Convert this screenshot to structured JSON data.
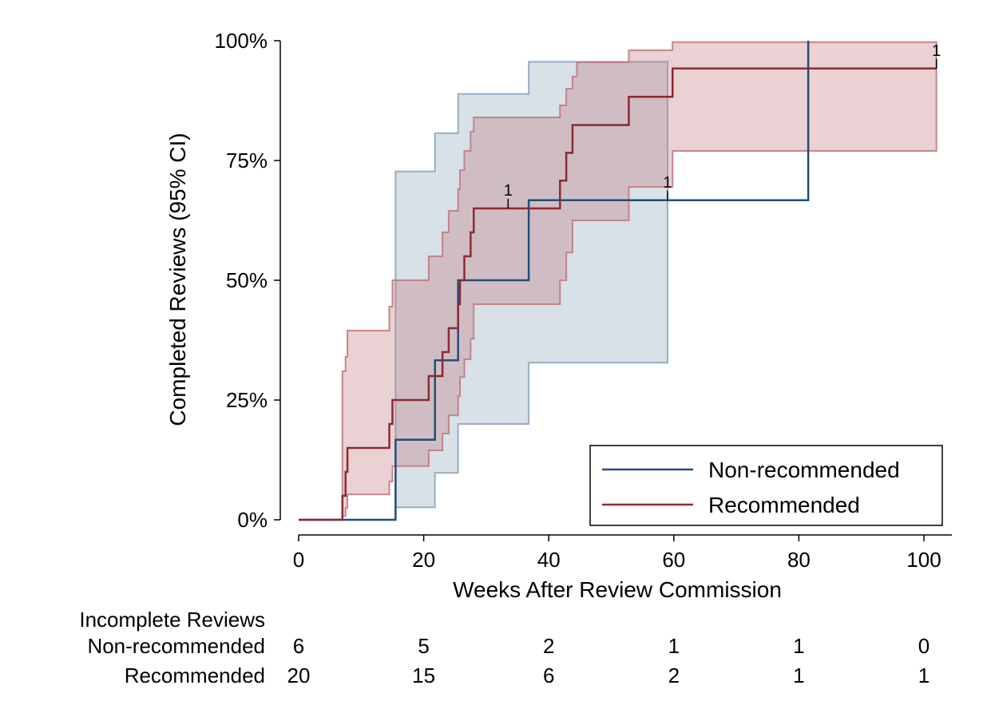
{
  "chart_data": {
    "type": "line",
    "xlabel": "Weeks After Review Commission",
    "ylabel": "Completed Reviews (95% CI)",
    "xlim": [
      0,
      102
    ],
    "ylim": [
      0,
      100
    ],
    "x_ticks": [
      "0",
      "20",
      "40",
      "60",
      "80",
      "100"
    ],
    "x_tick_values": [
      0,
      20,
      40,
      60,
      80,
      100
    ],
    "y_ticks": [
      "0%",
      "25%",
      "50%",
      "75%",
      "100%"
    ],
    "y_tick_values": [
      0,
      25,
      50,
      75,
      100
    ],
    "legend_position": "bottom-right",
    "colors": {
      "non_recommended": "#1f4e79",
      "recommended": "#8b2a35",
      "non_recommended_ci": "#8fa5bd",
      "recommended_ci": "#c27a80"
    },
    "series": [
      {
        "name": "Non-recommended",
        "step": [
          [
            0,
            0
          ],
          [
            15.5,
            0
          ],
          [
            15.5,
            16.7
          ],
          [
            21.8,
            16.7
          ],
          [
            21.8,
            33.3
          ],
          [
            25.5,
            33.3
          ],
          [
            25.5,
            50
          ],
          [
            36.8,
            50
          ],
          [
            36.8,
            66.7
          ],
          [
            81.5,
            66.7
          ],
          [
            81.5,
            100
          ]
        ],
        "ci_upper": [
          [
            15.5,
            0
          ],
          [
            15.5,
            72.7
          ],
          [
            21.8,
            72.7
          ],
          [
            21.8,
            80.7
          ],
          [
            25.5,
            80.7
          ],
          [
            25.5,
            88.9
          ],
          [
            36.8,
            88.9
          ],
          [
            36.8,
            95.6
          ],
          [
            59,
            95.6
          ]
        ],
        "ci_lower": [
          [
            15.5,
            0
          ],
          [
            15.5,
            2.6
          ],
          [
            21.8,
            2.6
          ],
          [
            21.8,
            9.8
          ],
          [
            25.5,
            9.8
          ],
          [
            25.5,
            20
          ],
          [
            36.8,
            20
          ],
          [
            36.8,
            32.8
          ],
          [
            59,
            32.8
          ]
        ],
        "censor_marks": [
          {
            "x": 59,
            "y": 66.7,
            "label": "1"
          }
        ]
      },
      {
        "name": "Recommended",
        "step": [
          [
            0,
            0
          ],
          [
            7,
            0
          ],
          [
            7,
            5
          ],
          [
            7.5,
            5
          ],
          [
            7.5,
            10
          ],
          [
            7.8,
            10
          ],
          [
            7.8,
            15
          ],
          [
            14.5,
            15
          ],
          [
            14.5,
            20
          ],
          [
            15,
            20
          ],
          [
            15,
            25
          ],
          [
            20.8,
            25
          ],
          [
            20.8,
            30
          ],
          [
            23,
            30
          ],
          [
            23,
            35
          ],
          [
            24,
            35
          ],
          [
            24,
            40
          ],
          [
            25.5,
            40
          ],
          [
            25.5,
            45
          ],
          [
            25.8,
            45
          ],
          [
            25.8,
            50
          ],
          [
            26.5,
            50
          ],
          [
            26.5,
            55
          ],
          [
            27.5,
            55
          ],
          [
            27.5,
            60
          ],
          [
            28,
            60
          ],
          [
            28,
            65
          ],
          [
            41.8,
            65
          ],
          [
            41.8,
            70.8
          ],
          [
            42.8,
            70.8
          ],
          [
            42.8,
            76.6
          ],
          [
            43.8,
            76.6
          ],
          [
            43.8,
            82.4
          ],
          [
            52.8,
            82.4
          ],
          [
            52.8,
            88.3
          ],
          [
            59.8,
            88.3
          ],
          [
            59.8,
            94.2
          ],
          [
            102,
            94.2
          ]
        ],
        "ci_upper": [
          [
            7,
            0
          ],
          [
            7,
            31
          ],
          [
            7.5,
            31
          ],
          [
            7.5,
            34
          ],
          [
            7.8,
            34
          ],
          [
            7.8,
            39.5
          ],
          [
            14.5,
            39.5
          ],
          [
            14.5,
            44.5
          ],
          [
            15,
            44.5
          ],
          [
            15,
            50
          ],
          [
            20.8,
            50
          ],
          [
            20.8,
            55
          ],
          [
            23,
            55
          ],
          [
            23,
            60
          ],
          [
            24,
            60
          ],
          [
            24,
            64.5
          ],
          [
            25.5,
            64.5
          ],
          [
            25.5,
            69
          ],
          [
            25.8,
            69
          ],
          [
            25.8,
            73
          ],
          [
            26.5,
            73
          ],
          [
            26.5,
            77
          ],
          [
            27.5,
            77
          ],
          [
            27.5,
            81
          ],
          [
            28,
            81
          ],
          [
            28,
            84
          ],
          [
            41.8,
            84
          ],
          [
            41.8,
            86.5
          ],
          [
            42.8,
            86.5
          ],
          [
            42.8,
            90
          ],
          [
            43.8,
            90
          ],
          [
            43.8,
            92.5
          ],
          [
            44.5,
            92.5
          ],
          [
            44.5,
            95.5
          ],
          [
            52.8,
            95.5
          ],
          [
            52.8,
            98
          ],
          [
            59.8,
            98
          ],
          [
            59.8,
            99.7
          ],
          [
            102,
            99.7
          ]
        ],
        "ci_lower": [
          [
            7,
            0
          ],
          [
            7,
            0.8
          ],
          [
            7.5,
            0.8
          ],
          [
            7.5,
            2.5
          ],
          [
            7.8,
            2.5
          ],
          [
            7.8,
            5.3
          ],
          [
            14.5,
            5.3
          ],
          [
            14.5,
            8
          ],
          [
            15,
            8
          ],
          [
            15,
            11.2
          ],
          [
            20.8,
            11.2
          ],
          [
            20.8,
            14.5
          ],
          [
            23,
            14.5
          ],
          [
            23,
            18
          ],
          [
            24,
            18
          ],
          [
            24,
            21.8
          ],
          [
            25.5,
            21.8
          ],
          [
            25.5,
            25.8
          ],
          [
            25.8,
            25.8
          ],
          [
            25.8,
            29.8
          ],
          [
            26.5,
            29.8
          ],
          [
            26.5,
            33.5
          ],
          [
            27.5,
            33.5
          ],
          [
            27.5,
            37.8
          ],
          [
            28,
            37.8
          ],
          [
            28,
            45
          ],
          [
            41.8,
            45
          ],
          [
            41.8,
            50
          ],
          [
            42.8,
            50
          ],
          [
            42.8,
            55.8
          ],
          [
            43.8,
            55.8
          ],
          [
            43.8,
            62.5
          ],
          [
            52.8,
            62.5
          ],
          [
            52.8,
            69.5
          ],
          [
            59.8,
            69.5
          ],
          [
            59.8,
            77
          ],
          [
            102,
            77
          ]
        ],
        "censor_marks": [
          {
            "x": 33.5,
            "y": 65,
            "label": "1"
          },
          {
            "x": 102,
            "y": 94.2,
            "label": "1"
          }
        ]
      }
    ],
    "risk_table": {
      "title": "Incomplete Reviews",
      "at_weeks": [
        0,
        20,
        40,
        60,
        80,
        100
      ],
      "rows": [
        {
          "label": "Non-recommended",
          "values": [
            "6",
            "5",
            "2",
            "1",
            "1",
            "0"
          ]
        },
        {
          "label": "Recommended",
          "values": [
            "20",
            "15",
            "6",
            "2",
            "1",
            "1"
          ]
        }
      ]
    }
  }
}
